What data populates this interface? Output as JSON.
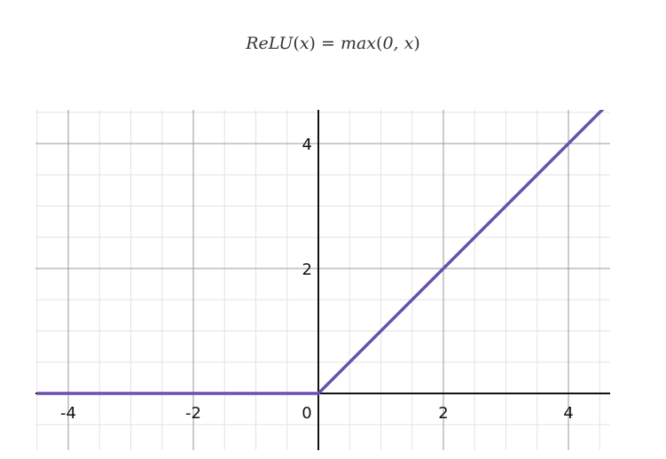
{
  "formula": {
    "lhs": "ReLU",
    "arg": "x",
    "rhs_fn": "max",
    "rhs_args": "0, x"
  },
  "chart_data": {
    "type": "line",
    "title": "",
    "xlabel": "",
    "ylabel": "",
    "xlim": [
      -4.5,
      4.6
    ],
    "ylim": [
      -0.9,
      4.6
    ],
    "grid": true,
    "legend": "none",
    "x_ticks": [
      {
        "value": -4,
        "label": "-4"
      },
      {
        "value": -2,
        "label": "-2"
      },
      {
        "value": 0,
        "label": "0"
      },
      {
        "value": 2,
        "label": "2"
      },
      {
        "value": 4,
        "label": "4"
      }
    ],
    "y_ticks": [
      {
        "value": 2,
        "label": "2"
      },
      {
        "value": 4,
        "label": "4"
      }
    ],
    "series": [
      {
        "color": "#6a4fb3",
        "x": [
          -4.5,
          0,
          4.6
        ],
        "y": [
          0,
          0,
          4.6
        ]
      }
    ]
  },
  "colors": {
    "minor_grid": "#e3e3e3",
    "major_grid": "#9a9a9a",
    "axis": "#111111",
    "line": "#6a4fb3"
  }
}
